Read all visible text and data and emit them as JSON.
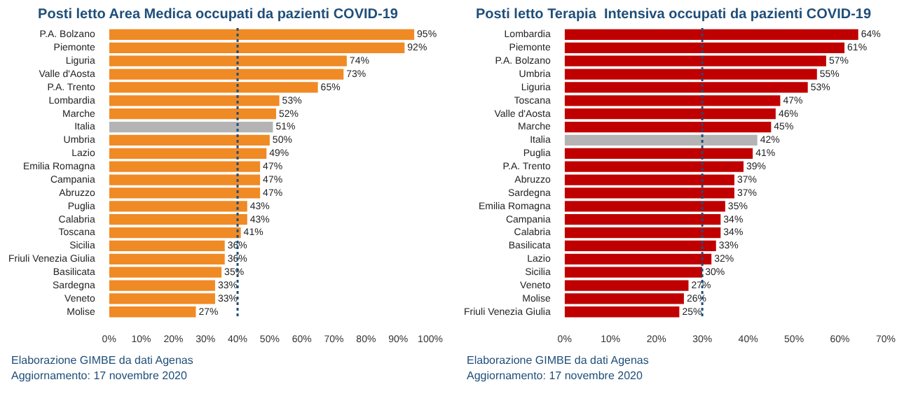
{
  "chart_data": [
    {
      "type": "bar",
      "orientation": "horizontal",
      "title": "Posti letto Area Medica occupati da pazienti COVID-19",
      "categories": [
        "P.A. Bolzano",
        "Piemonte",
        "Liguria",
        "Valle d'Aosta",
        "P.A. Trento",
        "Lombardia",
        "Marche",
        "Italia",
        "Umbria",
        "Lazio",
        "Emilia Romagna",
        "Campania",
        "Abruzzo",
        "Puglia",
        "Calabria",
        "Toscana",
        "Sicilia",
        "Friuli Venezia Giulia",
        "Basilicata",
        "Sardegna",
        "Veneto",
        "Molise"
      ],
      "values": [
        95,
        92,
        74,
        73,
        65,
        53,
        52,
        51,
        50,
        49,
        47,
        47,
        47,
        43,
        43,
        41,
        36,
        36,
        35,
        33,
        33,
        27
      ],
      "value_labels": [
        "95%",
        "92%",
        "74%",
        "73%",
        "65%",
        "53%",
        "52%",
        "51%",
        "50%",
        "49%",
        "47%",
        "47%",
        "47%",
        "43%",
        "43%",
        "41%",
        "36%",
        "36%",
        "35%",
        "33%",
        "33%",
        "27%"
      ],
      "colors": [
        "#f08a24",
        "#f08a24",
        "#f08a24",
        "#f08a24",
        "#f08a24",
        "#f08a24",
        "#f08a24",
        "#b4b4b4",
        "#f08a24",
        "#f08a24",
        "#f08a24",
        "#f08a24",
        "#f08a24",
        "#f08a24",
        "#f08a24",
        "#f08a24",
        "#f08a24",
        "#f08a24",
        "#f08a24",
        "#f08a24",
        "#f08a24",
        "#f08a24"
      ],
      "xlim": [
        0,
        100
      ],
      "xticks": [
        {
          "value": 0,
          "label": "0%"
        },
        {
          "value": 10,
          "label": "10%"
        },
        {
          "value": 20,
          "label": "20%"
        },
        {
          "value": 30,
          "label": "30%"
        },
        {
          "value": 40,
          "label": "40%"
        },
        {
          "value": 50,
          "label": "50%"
        },
        {
          "value": 60,
          "label": "60%"
        },
        {
          "value": 70,
          "label": "70%"
        },
        {
          "value": 80,
          "label": "80%"
        },
        {
          "value": 90,
          "label": "90%"
        },
        {
          "value": 100,
          "label": "100%"
        }
      ],
      "ref_lines": [
        {
          "axis": "x",
          "value": 40,
          "color": "#1f4e79",
          "line_style": "dotted"
        }
      ],
      "annotations": [
        "Elaborazione GIMBE da dati Agenas",
        "Aggiornamento: 17 novembre 2020"
      ]
    },
    {
      "type": "bar",
      "orientation": "horizontal",
      "title": "Posti letto Terapia  Intensiva occupati da pazienti COVID-19",
      "categories": [
        "Lombardia",
        "Piemonte",
        "P.A. Bolzano",
        "Umbria",
        "Liguria",
        "Toscana",
        "Valle d'Aosta",
        "Marche",
        "Italia",
        "Puglia",
        "P.A. Trento",
        "Abruzzo",
        "Sardegna",
        "Emilia Romagna",
        "Campania",
        "Calabria",
        "Basilicata",
        "Lazio",
        "Sicilia",
        "Veneto",
        "Molise",
        "Friuli Venezia Giulia"
      ],
      "values": [
        64,
        61,
        57,
        55,
        53,
        47,
        46,
        45,
        42,
        41,
        39,
        37,
        37,
        35,
        34,
        34,
        33,
        32,
        30,
        27,
        26,
        25
      ],
      "value_labels": [
        "64%",
        "61%",
        "57%",
        "55%",
        "53%",
        "47%",
        "46%",
        "45%",
        "42%",
        "41%",
        "39%",
        "37%",
        "37%",
        "35%",
        "34%",
        "34%",
        "33%",
        "32%",
        "30%",
        "27%",
        "26%",
        "25%"
      ],
      "colors": [
        "#c00000",
        "#c00000",
        "#c00000",
        "#c00000",
        "#c00000",
        "#c00000",
        "#c00000",
        "#c00000",
        "#b4b4b4",
        "#c00000",
        "#c00000",
        "#c00000",
        "#c00000",
        "#c00000",
        "#c00000",
        "#c00000",
        "#c00000",
        "#c00000",
        "#c00000",
        "#c00000",
        "#c00000",
        "#c00000"
      ],
      "xlim": [
        0,
        70
      ],
      "xticks": [
        {
          "value": 0,
          "label": "0%"
        },
        {
          "value": 10,
          "label": "10%"
        },
        {
          "value": 20,
          "label": "20%"
        },
        {
          "value": 30,
          "label": "30%"
        },
        {
          "value": 40,
          "label": "40%"
        },
        {
          "value": 50,
          "label": "50%"
        },
        {
          "value": 60,
          "label": "60%"
        },
        {
          "value": 70,
          "label": "70%"
        }
      ],
      "ref_lines": [
        {
          "axis": "x",
          "value": 30,
          "color": "#1f4e79",
          "line_style": "dotted"
        }
      ],
      "annotations": [
        "Elaborazione GIMBE da dati Agenas",
        "Aggiornamento: 17 novembre 2020"
      ]
    }
  ]
}
